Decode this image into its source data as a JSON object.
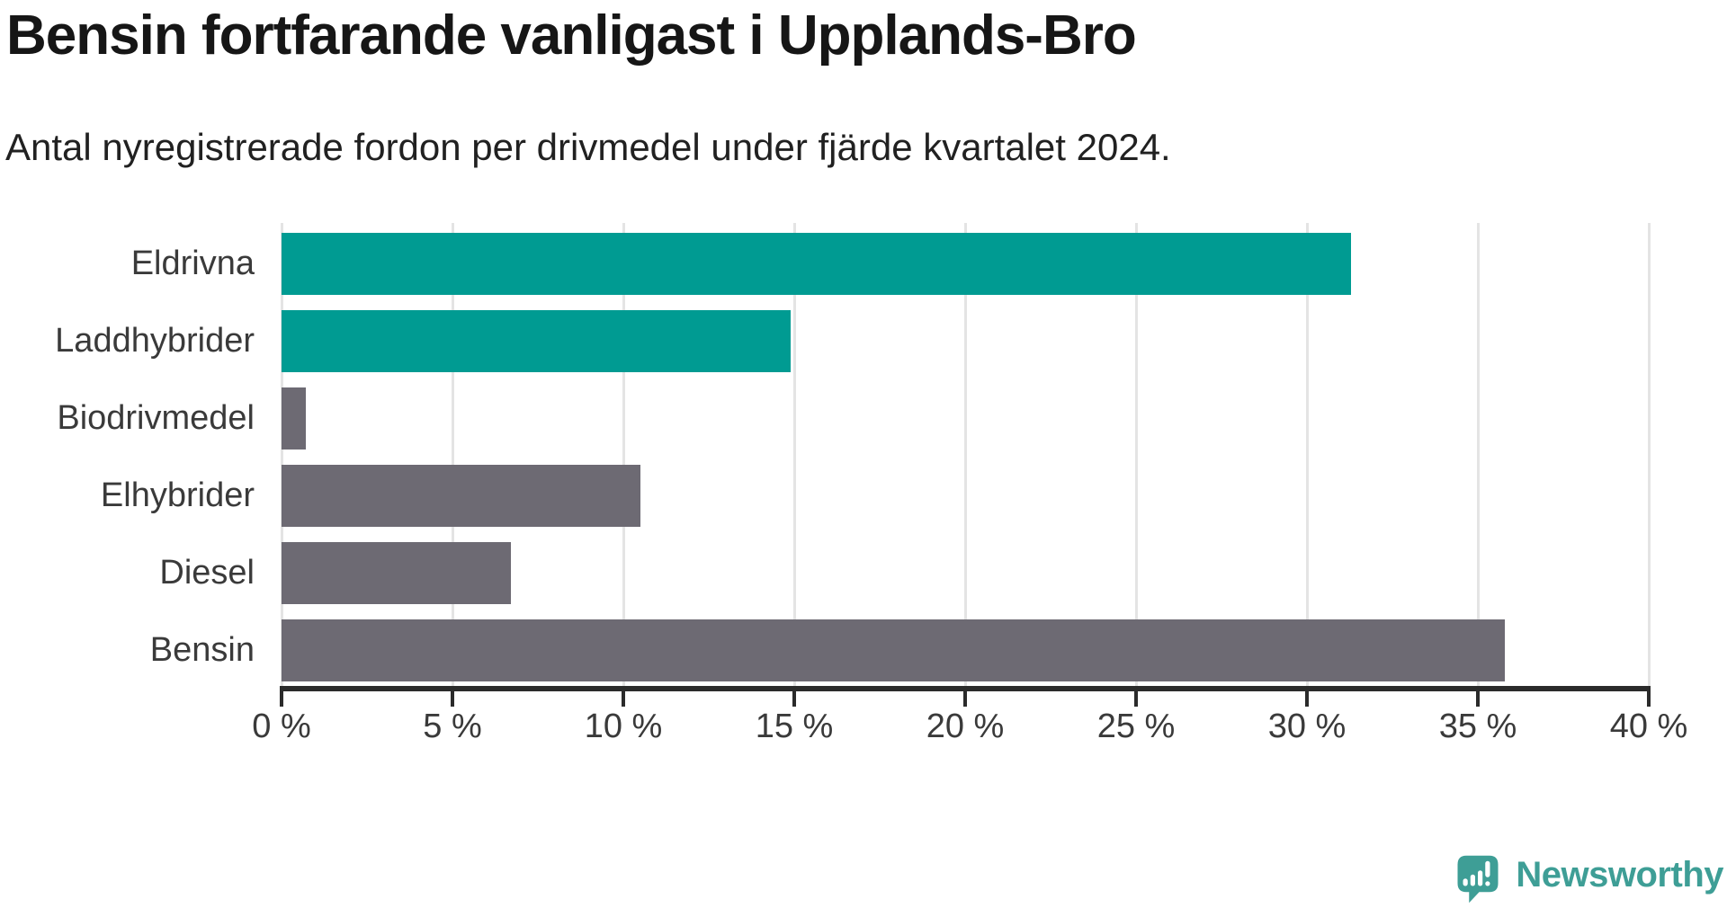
{
  "header": {
    "title": "Bensin fortfarande vanligast i Upplands-Bro",
    "subtitle": "Antal nyregistrerade fordon per drivmedel under fjärde kvartalet 2024."
  },
  "chart_data": {
    "type": "bar",
    "orientation": "horizontal",
    "title": "Bensin fortfarande vanligast i Upplands-Bro",
    "subtitle": "Antal nyregistrerade fordon per drivmedel under fjärde kvartalet 2024.",
    "categories": [
      "Eldrivna",
      "Laddhybrider",
      "Biodrivmedel",
      "Elhybrider",
      "Diesel",
      "Bensin"
    ],
    "values": [
      31.3,
      14.9,
      0.7,
      10.5,
      6.7,
      35.8
    ],
    "unit": "%",
    "bar_colors": [
      "#009b92",
      "#009b92",
      "#6d6a73",
      "#6d6a73",
      "#6d6a73",
      "#6d6a73"
    ],
    "xlim": [
      0,
      40
    ],
    "x_ticks": [
      "0 %",
      "5 %",
      "10 %",
      "15 %",
      "20 %",
      "25 %",
      "30 %",
      "35 %",
      "40 %"
    ],
    "grid": "vertical",
    "legend": "none"
  },
  "branding": {
    "logo_text": "Newsworthy",
    "logo_color": "#3e9e96",
    "logo_icon": "bar-chart-speech-bubble-icon"
  },
  "colors": {
    "teal_bar": "#009b92",
    "gray_bar": "#6d6a73",
    "axis": "#2b2b2b",
    "gridline": "#e4e4e4",
    "title_text": "#161616",
    "subtitle_text": "#212121",
    "label_text": "#3a3a3a",
    "background": "#ffffff"
  }
}
